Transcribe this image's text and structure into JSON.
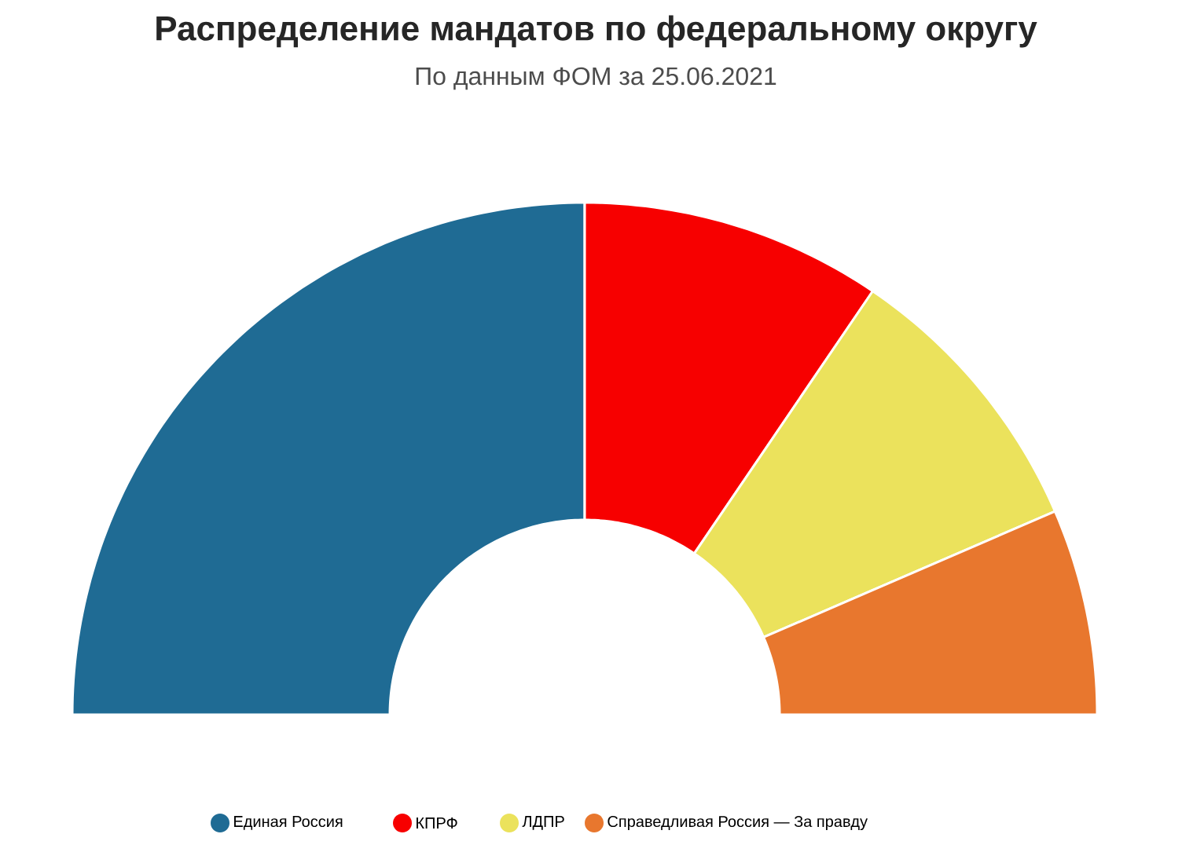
{
  "chart_data": {
    "type": "donut",
    "title": "Распределение мандатов по федеральному округу",
    "subtitle": "По данным ФОМ за 25.06.2021",
    "categories": [
      "Единая Россия",
      "КПРФ",
      "ЛДПР",
      "Справедливая Россия — За правду"
    ],
    "values": [
      50,
      19,
      18,
      13
    ],
    "colors": [
      "#1f6b94",
      "#f70000",
      "#ebe25c",
      "#e8772e"
    ],
    "legend": "bottom"
  }
}
